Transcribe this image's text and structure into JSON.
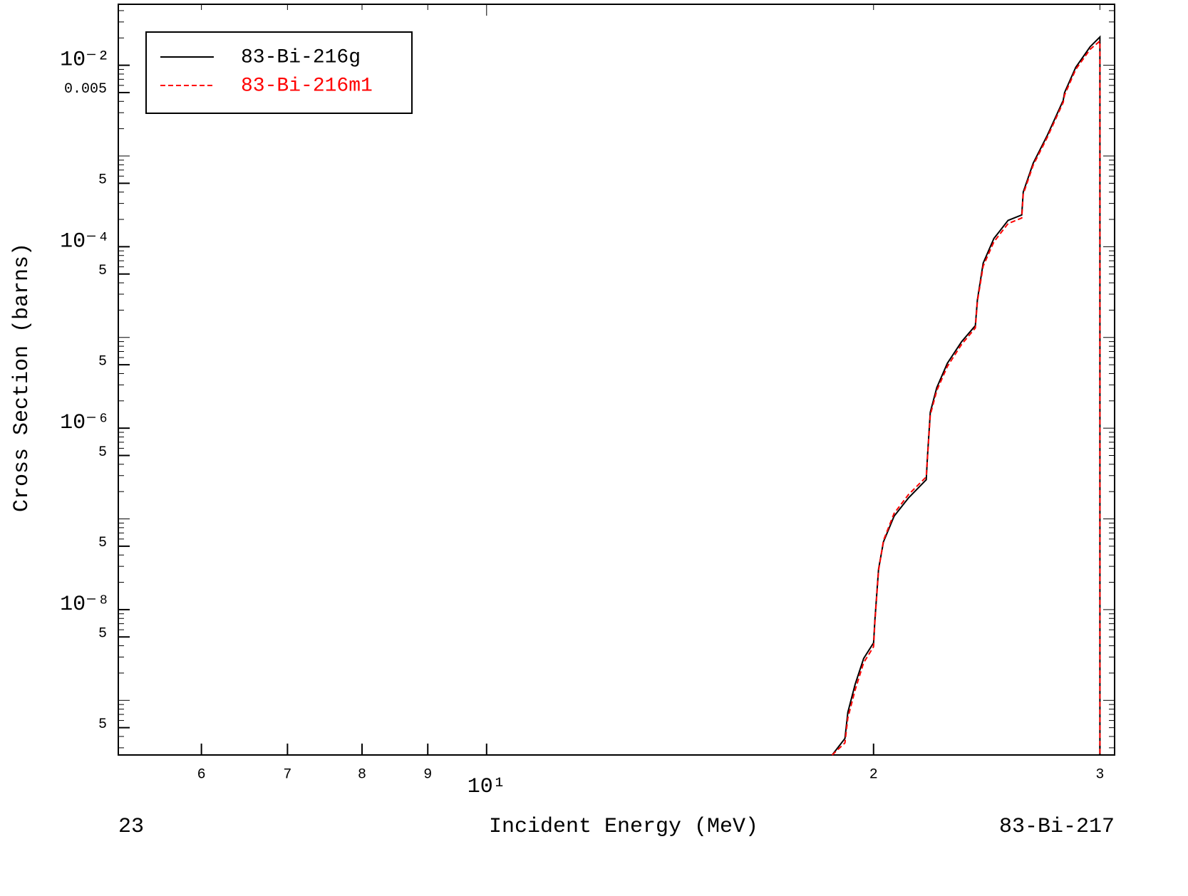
{
  "chart_data": {
    "type": "line",
    "x_label": "Incident Energy (MeV)",
    "y_label": "Cross Section (barns)",
    "corner_left": "23",
    "corner_right": "83-Bi-217",
    "log_x": true,
    "log_y": true,
    "xlim": [
      5.17,
      30.8
    ],
    "ylim": [
      2.5e-10,
      0.047
    ],
    "xticks": [
      6,
      7,
      8,
      9,
      {
        "value": 10,
        "label": "10¹"
      },
      {
        "value": 20,
        "label": "2"
      },
      {
        "value": 30,
        "label": "3"
      }
    ],
    "yticks": [
      {
        "value": 0.01,
        "label": "10⁻²"
      },
      0.005,
      {
        "value": 0.0005,
        "label": "5"
      },
      {
        "value": 0.0001,
        "label": "10⁻⁴"
      },
      {
        "value": 5e-05,
        "label": "5"
      },
      {
        "value": 5e-06,
        "label": "5"
      },
      {
        "value": 1e-06,
        "label": "10⁻⁶"
      },
      {
        "value": 5e-07,
        "label": "5"
      },
      {
        "value": 5e-08,
        "label": "5"
      },
      {
        "value": 1e-08,
        "label": "10⁻⁸"
      },
      {
        "value": 5e-09,
        "label": "5"
      },
      {
        "value": 5e-10,
        "label": "5"
      }
    ],
    "legend": "upper left",
    "x": [
      18.57,
      19.0,
      19.1,
      19.35,
      19.65,
      20.0,
      20.05,
      20.18,
      20.36,
      20.75,
      21.29,
      21.98,
      22.03,
      22.14,
      22.4,
      22.83,
      23.42,
      24.0,
      24.09,
      24.34,
      24.81,
      25.45,
      26.08,
      26.15,
      26.62,
      27.31,
      28.09,
      28.16,
      28.73,
      29.48,
      30.0,
      30.0
    ],
    "series": [
      {
        "name": "83-Bi-216g",
        "color": "#000000",
        "dashed": false,
        "values": [
          2.5e-10,
          3.8e-10,
          7.4e-10,
          1.5e-09,
          2.9e-09,
          4.3e-09,
          7.8e-09,
          2.8e-08,
          5.6e-08,
          1.07e-07,
          1.7e-07,
          2.7e-07,
          5e-07,
          1.5e-06,
          2.8e-06,
          5.2e-06,
          9e-06,
          1.35e-05,
          2.6e-05,
          6.6e-05,
          0.000123,
          0.000195,
          0.000224,
          0.0004,
          0.00083,
          0.0017,
          0.0041,
          0.005,
          0.0095,
          0.016,
          0.0205,
          2.5e-10
        ]
      },
      {
        "name": "83-Bi-216m1",
        "color": "#ff0000",
        "dashed": true,
        "values": [
          2.5e-10,
          3.4e-10,
          6.4e-10,
          1.3e-09,
          2.6e-09,
          3.9e-09,
          7.4e-09,
          2.7e-08,
          5.8e-08,
          1.15e-07,
          1.85e-07,
          2.9e-07,
          4.8e-07,
          1.4e-06,
          2.6e-06,
          4.8e-06,
          8.4e-06,
          1.27e-05,
          2.5e-05,
          6.1e-05,
          0.000113,
          0.00018,
          0.000207,
          0.00038,
          0.00079,
          0.00162,
          0.0039,
          0.0047,
          0.009,
          0.015,
          0.0185,
          2.5e-10
        ]
      }
    ]
  }
}
